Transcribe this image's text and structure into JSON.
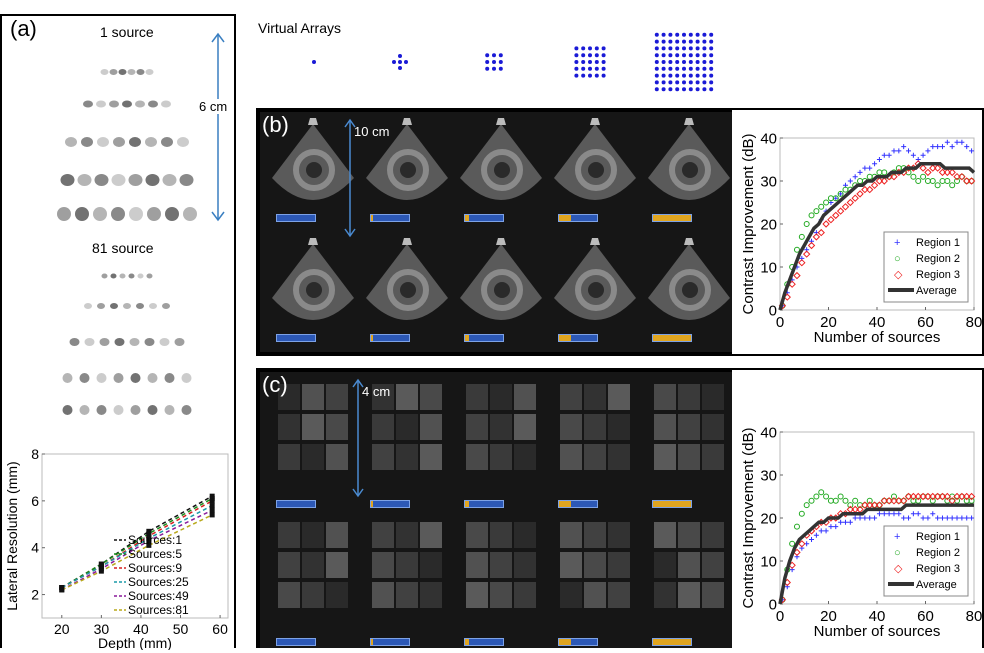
{
  "figure": {
    "panel_a": {
      "letter": "(a)",
      "top_caption": "1 source",
      "bottom_caption": "81 source",
      "scale_text": "6 cm"
    },
    "virtual_arrays": {
      "title": "Virtual Arrays",
      "grid_sizes": [
        1,
        5,
        9,
        25,
        81
      ],
      "dot_color": "#1a1ad6"
    },
    "panel_b": {
      "letter": "(b)",
      "scale_text": "10 cm",
      "bar_fill_fractions": [
        0.0,
        0.05,
        0.1,
        0.31,
        1.0
      ]
    },
    "panel_c": {
      "letter": "(c)",
      "scale_text": "4 cm",
      "bar_fill_fractions": [
        0.0,
        0.05,
        0.1,
        0.31,
        1.0
      ]
    }
  },
  "colors": {
    "bar_blue": "#2c58b6",
    "bar_orange": "#e0a520",
    "region1": "#3333ff",
    "region2": "#22aa22",
    "region3": "#ee2222",
    "average": "#333333"
  },
  "chart_data": [
    {
      "type": "line",
      "id": "lateral_resolution",
      "xlabel": "Depth (mm)",
      "ylabel": "Lateral Resolution (mm)",
      "xlim": [
        15,
        62
      ],
      "ylim": [
        1,
        8
      ],
      "xticks": [
        20,
        30,
        40,
        50,
        60
      ],
      "yticks": [
        2,
        4,
        6,
        8
      ],
      "x": [
        20,
        30,
        42,
        58
      ],
      "legend_position": "bottom-right",
      "series": [
        {
          "name": "Sources:1",
          "color": "#111111",
          "values": [
            2.3,
            3.3,
            4.7,
            6.2
          ]
        },
        {
          "name": "Sources:5",
          "color": "#1a8a1a",
          "values": [
            2.3,
            3.3,
            4.6,
            6.1
          ]
        },
        {
          "name": "Sources:9",
          "color": "#d42020",
          "values": [
            2.3,
            3.2,
            4.5,
            6.0
          ]
        },
        {
          "name": "Sources:25",
          "color": "#1a9aa8",
          "values": [
            2.3,
            3.2,
            4.4,
            5.8
          ]
        },
        {
          "name": "Sources:49",
          "color": "#8a1a9a",
          "values": [
            2.2,
            3.1,
            4.3,
            5.6
          ]
        },
        {
          "name": "Sources:81",
          "color": "#b8a81a",
          "values": [
            2.2,
            3.0,
            4.1,
            5.4
          ]
        }
      ]
    },
    {
      "type": "scatter",
      "id": "contrast_b",
      "xlabel": "Number of sources",
      "ylabel": "Contrast Improvement (dB)",
      "xlim": [
        0,
        80
      ],
      "ylim": [
        0,
        40
      ],
      "xticks": [
        0,
        20,
        40,
        60,
        80
      ],
      "yticks": [
        0,
        10,
        20,
        30,
        40
      ],
      "legend_position": "bottom-right",
      "series": [
        {
          "name": "Region 1",
          "marker": "plus",
          "x": [
            1,
            3,
            5,
            7,
            9,
            11,
            13,
            15,
            17,
            19,
            21,
            23,
            25,
            27,
            29,
            31,
            33,
            35,
            37,
            39,
            41,
            43,
            45,
            47,
            49,
            51,
            53,
            55,
            57,
            59,
            61,
            63,
            65,
            67,
            69,
            71,
            73,
            75,
            77,
            79
          ],
          "values": [
            1,
            4,
            7,
            10,
            12,
            14,
            16,
            18,
            21,
            23,
            25,
            26,
            27,
            29,
            30,
            31,
            32,
            33,
            33,
            34,
            35,
            36,
            36,
            37,
            37,
            38,
            37,
            36,
            35,
            36,
            37,
            38,
            38,
            38,
            39,
            38,
            39,
            39,
            38,
            37
          ]
        },
        {
          "name": "Region 2",
          "marker": "circle",
          "x": [
            1,
            3,
            5,
            7,
            9,
            11,
            13,
            15,
            17,
            19,
            21,
            23,
            25,
            27,
            29,
            31,
            33,
            35,
            37,
            39,
            41,
            43,
            45,
            47,
            49,
            51,
            53,
            55,
            57,
            59,
            61,
            63,
            65,
            67,
            69,
            71,
            73,
            75,
            77,
            79
          ],
          "values": [
            1,
            6,
            10,
            14,
            17,
            20,
            22,
            23,
            24,
            25,
            26,
            26,
            27,
            28,
            28,
            29,
            30,
            30,
            31,
            31,
            32,
            32,
            31,
            32,
            33,
            33,
            32,
            31,
            30,
            31,
            30,
            30,
            29,
            30,
            30,
            29,
            30,
            31,
            30,
            30
          ]
        },
        {
          "name": "Region 3",
          "marker": "diamond",
          "x": [
            1,
            3,
            5,
            7,
            9,
            11,
            13,
            15,
            17,
            19,
            21,
            23,
            25,
            27,
            29,
            31,
            33,
            35,
            37,
            39,
            41,
            43,
            45,
            47,
            49,
            51,
            53,
            55,
            57,
            59,
            61,
            63,
            65,
            67,
            69,
            71,
            73,
            75,
            77,
            79
          ],
          "values": [
            1,
            3,
            6,
            8,
            11,
            13,
            15,
            17,
            18,
            20,
            21,
            22,
            23,
            24,
            25,
            26,
            27,
            28,
            28,
            29,
            30,
            30,
            31,
            31,
            32,
            32,
            33,
            33,
            34,
            33,
            32,
            33,
            33,
            32,
            32,
            32,
            31,
            31,
            30,
            30
          ]
        },
        {
          "name": "Average",
          "marker": "line",
          "x": [
            0,
            2,
            4,
            6,
            8,
            10,
            12,
            14,
            16,
            18,
            20,
            22,
            24,
            26,
            28,
            30,
            32,
            34,
            36,
            38,
            40,
            42,
            44,
            46,
            48,
            50,
            52,
            54,
            56,
            58,
            60,
            62,
            64,
            66,
            68,
            70,
            72,
            74,
            76,
            78,
            80
          ],
          "values": [
            0,
            4,
            7,
            10,
            13,
            15,
            17,
            19,
            20,
            22,
            23,
            24,
            25,
            26,
            27,
            28,
            29,
            29,
            30,
            30,
            31,
            31,
            31,
            32,
            32,
            32,
            33,
            33,
            33,
            34,
            34,
            34,
            34,
            34,
            33,
            33,
            33,
            33,
            33,
            33,
            32
          ]
        }
      ]
    },
    {
      "type": "scatter",
      "id": "contrast_c",
      "xlabel": "Number of sources",
      "ylabel": "Contrast Improvement (dB)",
      "xlim": [
        0,
        80
      ],
      "ylim": [
        0,
        40
      ],
      "xticks": [
        0,
        20,
        40,
        60,
        80
      ],
      "yticks": [
        0,
        10,
        20,
        30,
        40
      ],
      "legend_position": "bottom-right",
      "series": [
        {
          "name": "Region 1",
          "marker": "plus",
          "x": [
            1,
            3,
            5,
            7,
            9,
            11,
            13,
            15,
            17,
            19,
            21,
            23,
            25,
            27,
            29,
            31,
            33,
            35,
            37,
            39,
            41,
            43,
            45,
            47,
            49,
            51,
            53,
            55,
            57,
            59,
            61,
            63,
            65,
            67,
            69,
            71,
            73,
            75,
            77,
            79
          ],
          "values": [
            1,
            4,
            8,
            11,
            13,
            14,
            15,
            16,
            17,
            17,
            18,
            18,
            19,
            19,
            19,
            20,
            20,
            20,
            20,
            20,
            21,
            21,
            21,
            21,
            21,
            20,
            20,
            21,
            21,
            20,
            20,
            21,
            20,
            20,
            20,
            20,
            20,
            20,
            20,
            20
          ]
        },
        {
          "name": "Region 2",
          "marker": "circle",
          "x": [
            1,
            3,
            5,
            7,
            9,
            11,
            13,
            15,
            17,
            19,
            21,
            23,
            25,
            27,
            29,
            31,
            33,
            35,
            37,
            39,
            41,
            43,
            45,
            47,
            49,
            51,
            53,
            55,
            57,
            59,
            61,
            63,
            65,
            67,
            69,
            71,
            73,
            75,
            77,
            79
          ],
          "values": [
            1,
            8,
            14,
            18,
            21,
            23,
            24,
            25,
            26,
            25,
            24,
            24,
            25,
            24,
            23,
            24,
            23,
            23,
            24,
            23,
            23,
            24,
            24,
            25,
            24,
            24,
            25,
            24,
            24,
            25,
            25,
            24,
            25,
            25,
            24,
            25,
            24,
            25,
            24,
            24
          ]
        },
        {
          "name": "Region 3",
          "marker": "diamond",
          "x": [
            1,
            3,
            5,
            7,
            9,
            11,
            13,
            15,
            17,
            19,
            21,
            23,
            25,
            27,
            29,
            31,
            33,
            35,
            37,
            39,
            41,
            43,
            45,
            47,
            49,
            51,
            53,
            55,
            57,
            59,
            61,
            63,
            65,
            67,
            69,
            71,
            73,
            75,
            77,
            79
          ],
          "values": [
            1,
            5,
            9,
            12,
            14,
            16,
            17,
            18,
            19,
            19,
            20,
            20,
            21,
            21,
            22,
            22,
            22,
            23,
            23,
            23,
            23,
            24,
            24,
            24,
            24,
            24,
            25,
            25,
            25,
            25,
            25,
            25,
            25,
            25,
            25,
            24,
            25,
            25,
            25,
            25
          ]
        },
        {
          "name": "Average",
          "marker": "line",
          "x": [
            0,
            2,
            4,
            6,
            8,
            10,
            12,
            14,
            16,
            18,
            20,
            22,
            24,
            26,
            28,
            30,
            32,
            34,
            36,
            38,
            40,
            42,
            44,
            46,
            48,
            50,
            52,
            54,
            56,
            58,
            60,
            62,
            64,
            66,
            68,
            70,
            72,
            74,
            76,
            78,
            80
          ],
          "values": [
            0,
            6,
            10,
            13,
            15,
            16,
            17,
            18,
            19,
            19,
            20,
            20,
            20,
            21,
            21,
            21,
            21,
            21,
            22,
            22,
            22,
            22,
            22,
            22,
            22,
            22,
            23,
            23,
            23,
            23,
            23,
            23,
            23,
            23,
            23,
            23,
            23,
            23,
            23,
            23,
            23
          ]
        }
      ]
    }
  ]
}
